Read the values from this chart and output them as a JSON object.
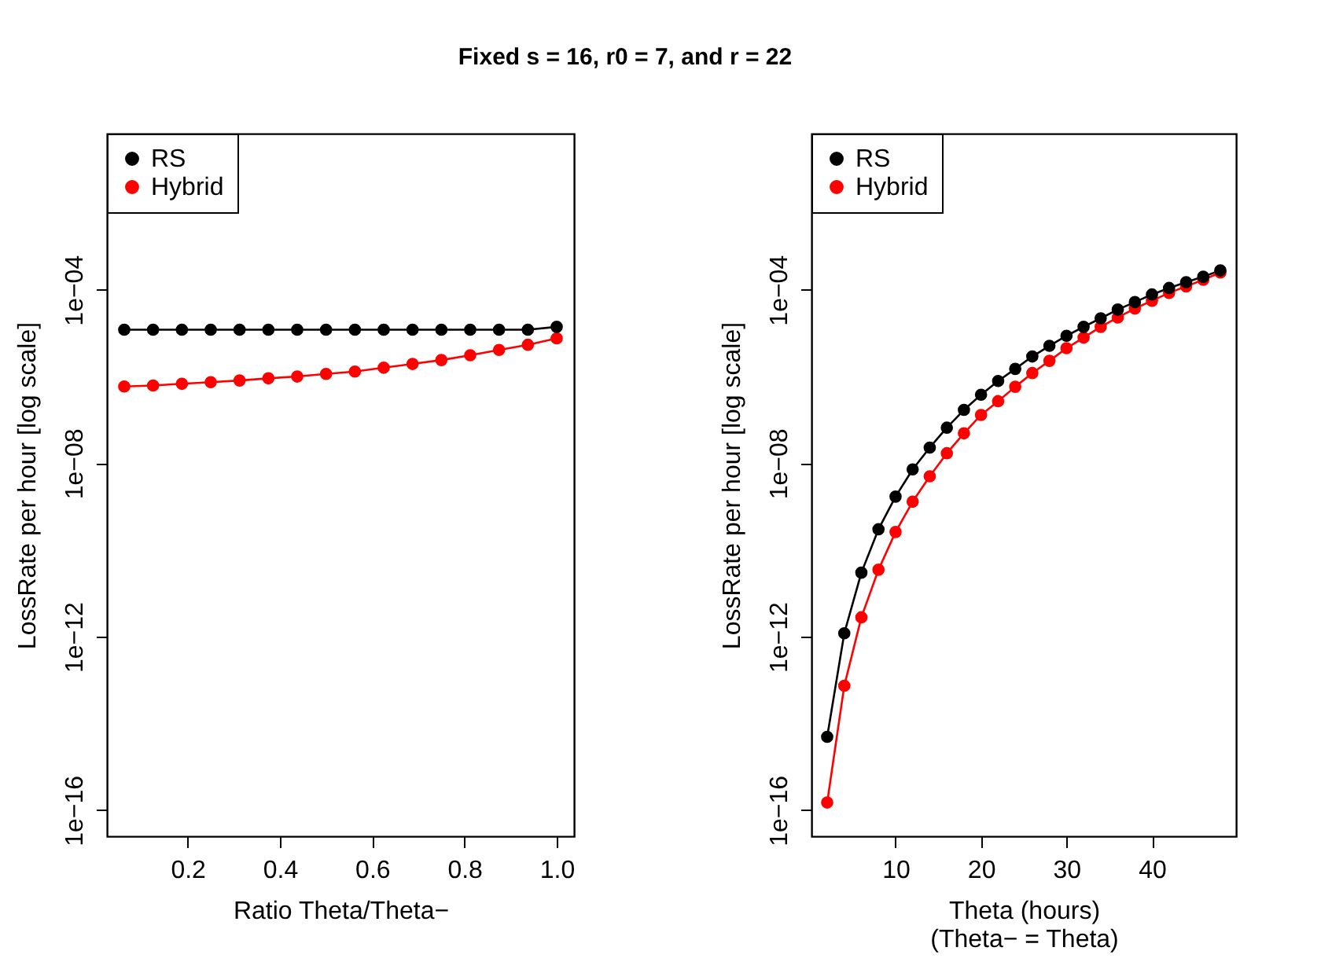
{
  "chart_data": [
    {
      "type": "line",
      "title": "Fixed s = 16, r0 = 7, and r = 22",
      "xlabel": "Ratio Theta/Theta−",
      "ylabel": "LossRate per hour [log scale]",
      "log": "y",
      "legend": "top left",
      "marker": "circle",
      "grid": false,
      "x": [
        0.0625,
        0.125,
        0.1875,
        0.25,
        0.3125,
        0.375,
        0.4375,
        0.5,
        0.5625,
        0.625,
        0.6875,
        0.75,
        0.8125,
        0.875,
        0.9375,
        1.0
      ],
      "series": [
        {
          "name": "RS",
          "color": "#000000",
          "values": [
            1.2e-05,
            1.2e-05,
            1.2e-05,
            1.2e-05,
            1.2e-05,
            1.2e-05,
            1.2e-05,
            1.2e-05,
            1.2e-05,
            1.2e-05,
            1.2e-05,
            1.2e-05,
            1.2e-05,
            1.2e-05,
            1.2e-05,
            1.4e-05
          ]
        },
        {
          "name": "Hybrid",
          "color": "#ff0000",
          "values": [
            5.9e-07,
            6.2e-07,
            6.8e-07,
            7.4e-07,
            8.1e-07,
            9.1e-07,
            1e-06,
            1.15e-06,
            1.3e-06,
            1.6e-06,
            1.95e-06,
            2.4e-06,
            3.1e-06,
            4.1e-06,
            5.4e-06,
            7.6e-06
          ]
        }
      ],
      "xlim": [
        0.025,
        1.0375
      ],
      "xticks": [
        0.2,
        0.4,
        0.6,
        0.8,
        {
          "value": 1.0,
          "label": "1.0"
        }
      ],
      "ylim": [
        2.5e-17,
        0.4
      ],
      "yticks": [
        {
          "value": 1e-16,
          "label": "1e−16"
        },
        {
          "value": 1e-12,
          "label": "1e−12"
        },
        {
          "value": 1e-08,
          "label": "1e−08"
        },
        {
          "value": 0.0001,
          "label": "1e−04"
        }
      ]
    },
    {
      "type": "line",
      "xlabel": "Theta (hours)\n(Theta− = Theta)",
      "ylabel": "LossRate per hour [log scale]",
      "log": "y",
      "legend": "top left",
      "marker": "circle",
      "grid": false,
      "x": [
        2,
        4,
        6,
        8,
        10,
        12,
        14,
        16,
        18,
        20,
        22,
        24,
        26,
        28,
        30,
        32,
        34,
        36,
        38,
        40,
        42,
        44,
        46,
        48
      ],
      "series": [
        {
          "name": "RS",
          "color": "#000000",
          "values": [
            4.9e-15,
            1.2e-12,
            3e-11,
            3e-10,
            1.7e-09,
            7.2e-09,
            2.3e-08,
            6.6e-08,
            1.7e-07,
            3.8e-07,
            7.9e-07,
            1.5e-06,
            2.9e-06,
            5.1e-06,
            8.7e-06,
            1.4e-05,
            2.2e-05,
            3.5e-05,
            5.2e-05,
            7.8e-05,
            0.00011,
            0.00015,
            0.0002,
            0.00028
          ]
        },
        {
          "name": "Hybrid",
          "color": "#ff0000",
          "values": [
            1.5e-16,
            7.4e-14,
            2.8e-12,
            3.5e-11,
            2.6e-10,
            1.3e-09,
            5e-09,
            1.7e-08,
            4.9e-08,
            1.3e-07,
            2.7e-07,
            5.8e-07,
            1.2e-06,
            2.3e-06,
            4.5e-06,
            7.9e-06,
            1.4e-05,
            2.3e-05,
            3.7e-05,
            5.6e-05,
            8.5e-05,
            0.00012,
            0.00017,
            0.00025
          ]
        }
      ],
      "xlim": [
        0.16,
        49.84
      ],
      "xticks": [
        10,
        20,
        30,
        40
      ],
      "ylim": [
        2.5e-17,
        0.4
      ],
      "yticks": [
        {
          "value": 1e-16,
          "label": "1e−16"
        },
        {
          "value": 1e-12,
          "label": "1e−12"
        },
        {
          "value": 1e-08,
          "label": "1e−08"
        },
        {
          "value": 0.0001,
          "label": "1e−04"
        }
      ]
    }
  ]
}
